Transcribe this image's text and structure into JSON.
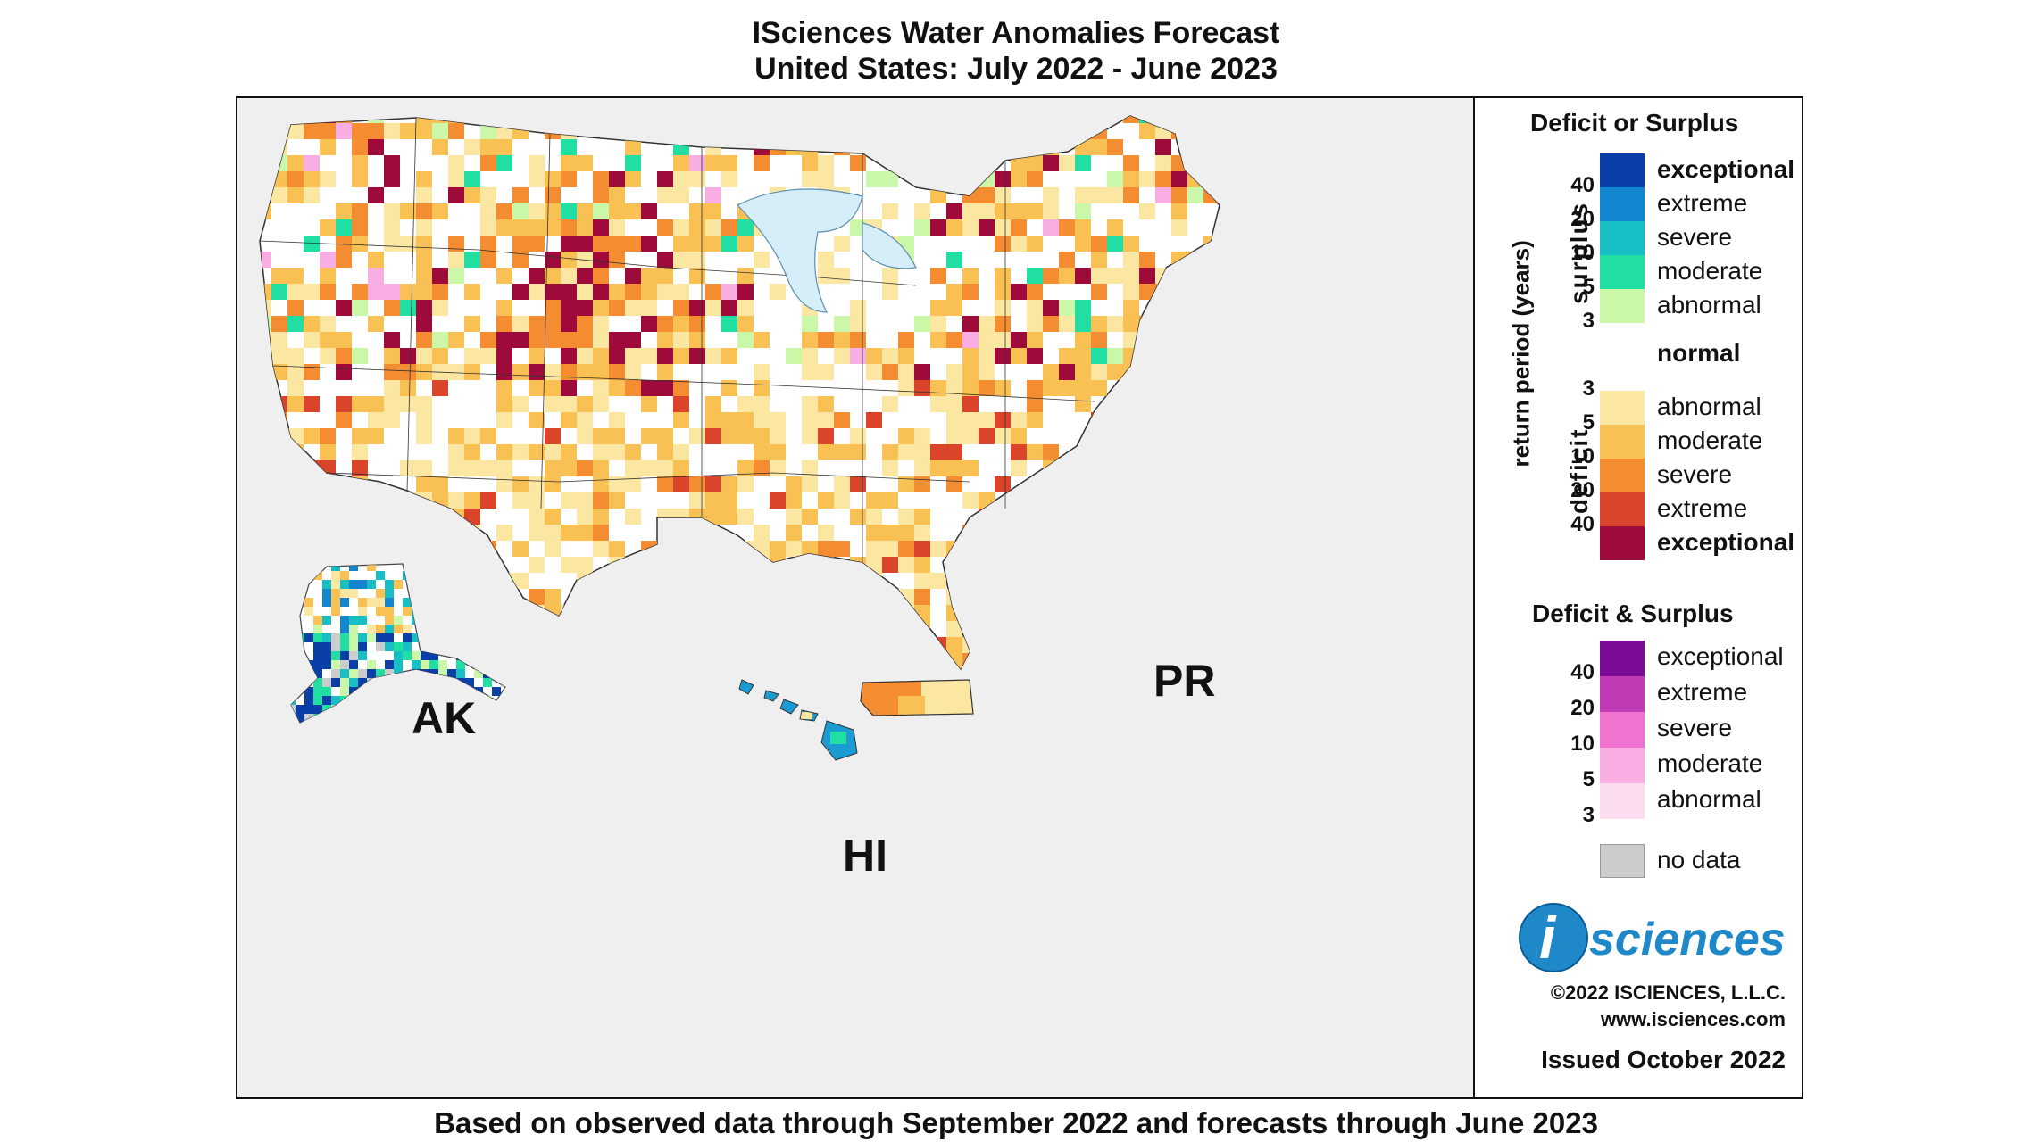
{
  "title_line1": "ISciences Water Anomalies Forecast",
  "title_line2": "United States: July 2022 - June 2023",
  "footer": "Based on observed data through September 2022 and forecasts through June 2023",
  "regions": {
    "ak": "AK",
    "hi": "HI",
    "pr": "PR"
  },
  "legend": {
    "heading1": "Deficit or Surplus",
    "axis_label": "return period (years)",
    "surplus_word": "surplus",
    "deficit_word": "deficit",
    "surplus_items": [
      {
        "label": "exceptional",
        "color": "#0b3fa8",
        "bold": true
      },
      {
        "label": "extreme",
        "color": "#1286d0",
        "bold": false
      },
      {
        "label": "severe",
        "color": "#17bfc4",
        "bold": false
      },
      {
        "label": "moderate",
        "color": "#21dfa3",
        "bold": false
      },
      {
        "label": "abnormal",
        "color": "#cbf7a9",
        "bold": false
      }
    ],
    "surplus_numbers": [
      "40",
      "20",
      "10",
      "5",
      "3"
    ],
    "normal_label": "normal",
    "deficit_numbers": [
      "3",
      "5",
      "10",
      "20",
      "40"
    ],
    "deficit_items": [
      {
        "label": "abnormal",
        "color": "#fbe6a2",
        "bold": false
      },
      {
        "label": "moderate",
        "color": "#f9c154",
        "bold": false
      },
      {
        "label": "severe",
        "color": "#f48d32",
        "bold": false
      },
      {
        "label": "extreme",
        "color": "#d9442a",
        "bold": false
      },
      {
        "label": "exceptional",
        "color": "#9e0a3a",
        "bold": true
      }
    ],
    "heading2": "Deficit & Surplus",
    "both_numbers": [
      "40",
      "20",
      "10",
      "5",
      "3"
    ],
    "both_items": [
      {
        "label": "exceptional",
        "color": "#7b0c96"
      },
      {
        "label": "extreme",
        "color": "#c23bb6"
      },
      {
        "label": "severe",
        "color": "#f073cf"
      },
      {
        "label": "moderate",
        "color": "#f8aee3"
      },
      {
        "label": "abnormal",
        "color": "#fcdcef"
      }
    ],
    "nodata_label": "no data",
    "nodata_color": "#cccccc"
  },
  "logo": {
    "i_letter": "i",
    "text": "sciences",
    "brand_color": "#1e88c8"
  },
  "copyright": "©2022 ISCIENCES, L.L.C.",
  "website": "www.isciences.com",
  "issued": "Issued October 2022"
}
